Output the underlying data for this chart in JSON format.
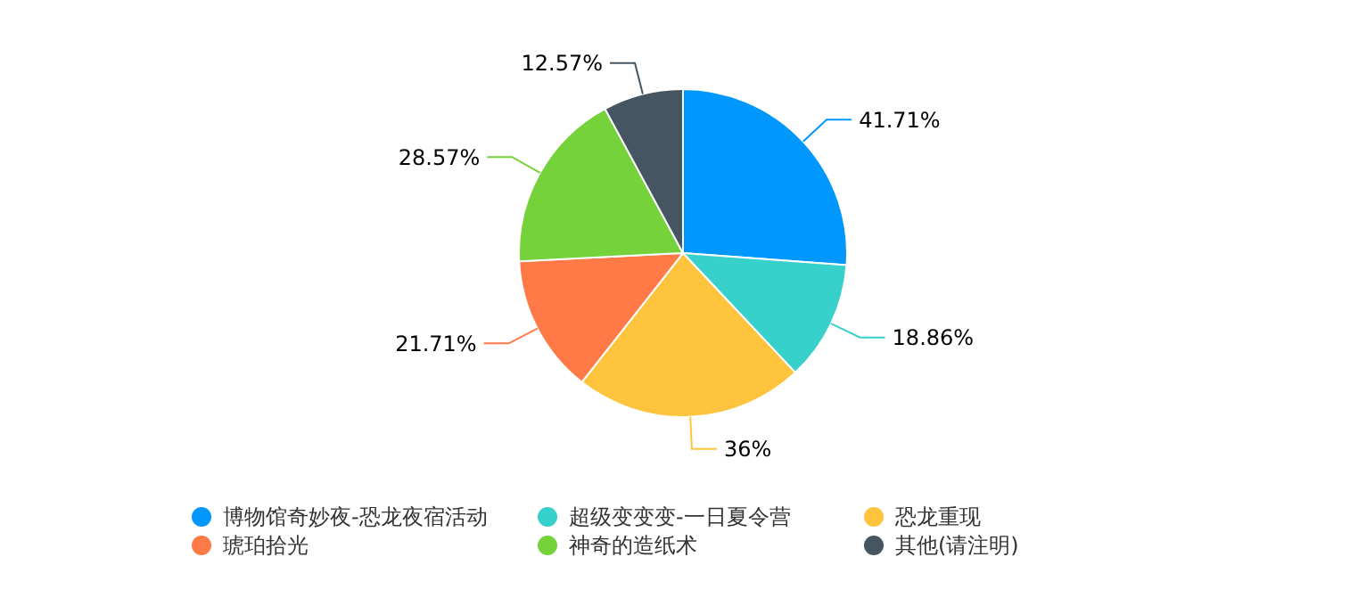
{
  "chart_data": {
    "type": "pie",
    "categories": [
      "博物馆奇妙夜-恐龙夜宿活动",
      "超级变变变-一日夏令营",
      "恐龙重现",
      "琥珀拾光",
      "神奇的造纸术",
      "其他(请注明)"
    ],
    "values": [
      41.71,
      18.86,
      36,
      21.71,
      28.57,
      12.57
    ],
    "colors": [
      "#0098fe",
      "#38d0cb",
      "#ffc43d",
      "#ff7a46",
      "#75d23a",
      "#455662"
    ],
    "value_labels": [
      "41.71%",
      "18.86%",
      "36%",
      "21.71%",
      "28.57%",
      "12.57%"
    ],
    "legend": "bottom"
  }
}
